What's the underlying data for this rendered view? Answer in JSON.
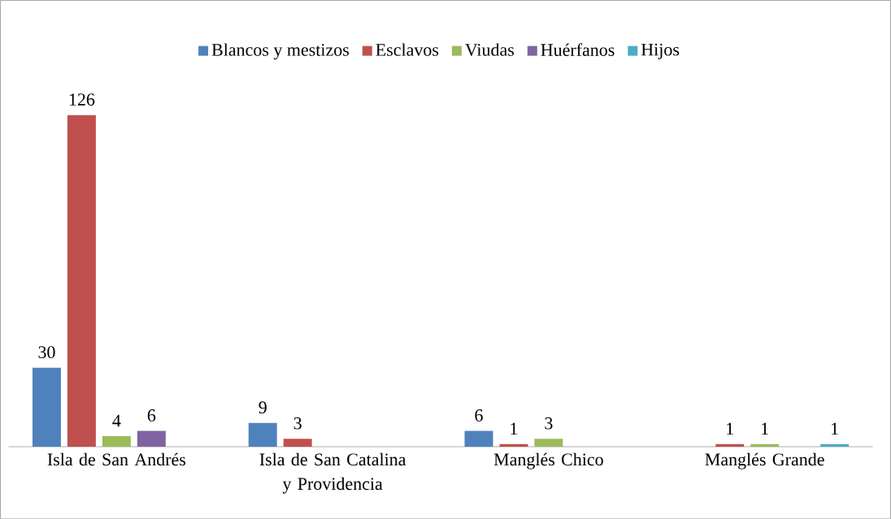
{
  "chart_data": {
    "type": "bar",
    "categories": [
      "Isla de San Andrés",
      "Isla de San Catalina y Providencia",
      "Manglés Chico",
      "Manglés Grande"
    ],
    "series": [
      {
        "name": "Blancos y mestizos",
        "color": "#4f81bd",
        "values": [
          30,
          9,
          6,
          null
        ]
      },
      {
        "name": "Esclavos",
        "color": "#c0504d",
        "values": [
          126,
          3,
          1,
          1
        ]
      },
      {
        "name": "Viudas",
        "color": "#9bbb59",
        "values": [
          4,
          null,
          3,
          1
        ]
      },
      {
        "name": "Huérfanos",
        "color": "#8064a2",
        "values": [
          6,
          null,
          null,
          null
        ]
      },
      {
        "name": "Hijos",
        "color": "#4bacc6",
        "values": [
          null,
          null,
          null,
          1
        ]
      }
    ],
    "data_labels": true,
    "legend": "top"
  }
}
